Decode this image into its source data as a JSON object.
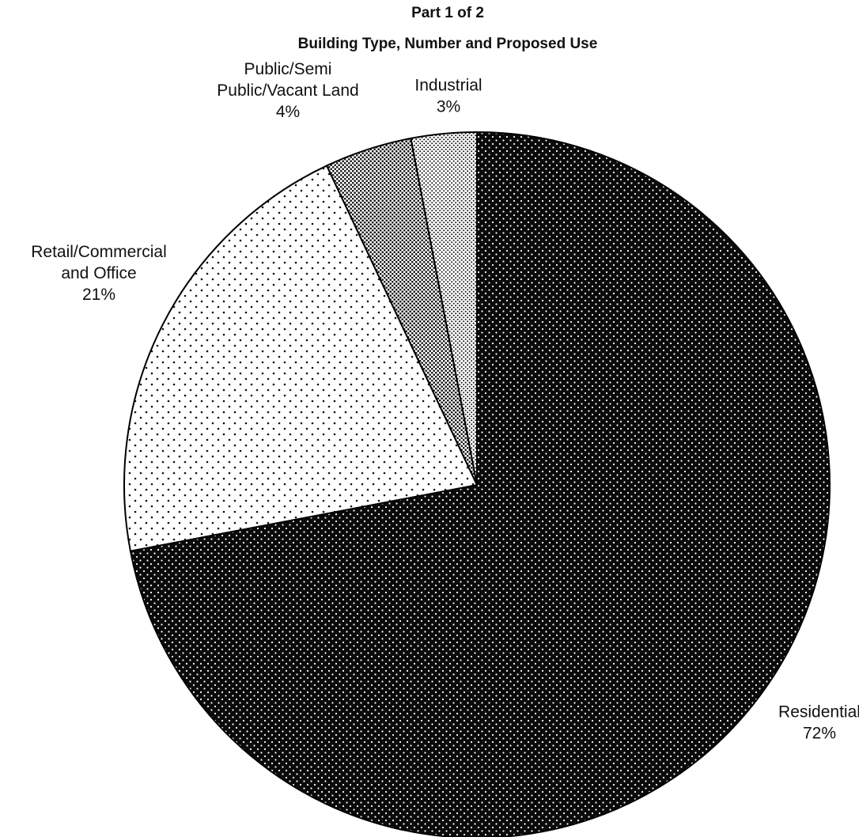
{
  "chart_data": {
    "type": "pie",
    "title": "Part 1 of 2",
    "subtitle": "Building Type, Number and Proposed Use",
    "slices": [
      {
        "label_lines": [
          "Residential",
          "72%"
        ],
        "value": 72,
        "pattern": "dense-black-dots"
      },
      {
        "label_lines": [
          "Retail/Commercial",
          "and Office",
          "21%"
        ],
        "value": 21,
        "pattern": "sparse-dots"
      },
      {
        "label_lines": [
          "Public/Semi",
          "Public/Vacant Land",
          "4%"
        ],
        "value": 4,
        "pattern": "fine-dark-dots"
      },
      {
        "label_lines": [
          "Industrial",
          "3%"
        ],
        "value": 3,
        "pattern": "fine-dots"
      }
    ]
  }
}
